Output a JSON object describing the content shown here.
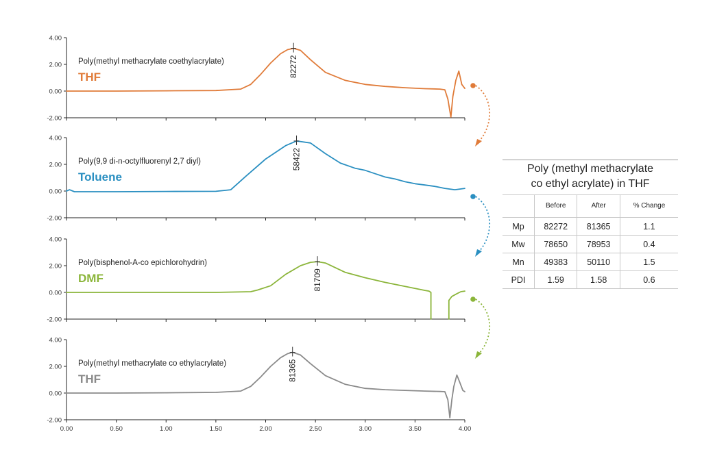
{
  "chart_data": [
    {
      "type": "line",
      "title": "Poly(methyl methacrylate coethylacrylate)",
      "solvent": "THF",
      "color": "#e07b39",
      "peak_label": "82272",
      "peak_x": 2.28,
      "peak_y": 3.2,
      "xlim": [
        0,
        4
      ],
      "ylim": [
        -2,
        4
      ],
      "y_ticks": [
        "4.00",
        "2.00",
        "0.00",
        "-2.00"
      ],
      "x": [
        0,
        0.5,
        1.0,
        1.5,
        1.75,
        1.85,
        1.95,
        2.05,
        2.15,
        2.22,
        2.28,
        2.35,
        2.45,
        2.6,
        2.8,
        3.0,
        3.2,
        3.4,
        3.6,
        3.75,
        3.8,
        3.83,
        3.86,
        3.88,
        3.91,
        3.94,
        3.97,
        4.0
      ],
      "y": [
        0.0,
        0.0,
        0.02,
        0.04,
        0.15,
        0.5,
        1.25,
        2.1,
        2.8,
        3.1,
        3.2,
        3.05,
        2.35,
        1.4,
        0.8,
        0.5,
        0.35,
        0.25,
        0.18,
        0.15,
        0.1,
        -0.6,
        -1.95,
        -0.4,
        0.8,
        1.5,
        0.5,
        0.2
      ]
    },
    {
      "type": "line",
      "title": "Poly(9,9 di-n-octylfluorenyl 2,7 diyl)",
      "solvent": "Toluene",
      "color": "#2a8fc1",
      "peak_label": "58422",
      "peak_x": 2.31,
      "peak_y": 3.75,
      "xlim": [
        0,
        4
      ],
      "ylim": [
        -2,
        4
      ],
      "y_ticks": [
        "4.00",
        "2.00",
        "0.00",
        "-2.00"
      ],
      "x": [
        0,
        0.03,
        0.08,
        0.5,
        1.0,
        1.5,
        1.65,
        1.8,
        2.0,
        2.2,
        2.31,
        2.45,
        2.6,
        2.75,
        2.9,
        3.0,
        3.1,
        3.2,
        3.3,
        3.4,
        3.5,
        3.6,
        3.7,
        3.8,
        3.9,
        4.0
      ],
      "y": [
        0.0,
        0.1,
        -0.05,
        -0.05,
        -0.03,
        -0.02,
        0.1,
        1.1,
        2.4,
        3.4,
        3.75,
        3.6,
        2.8,
        2.1,
        1.7,
        1.55,
        1.3,
        1.05,
        0.9,
        0.7,
        0.55,
        0.45,
        0.35,
        0.2,
        0.1,
        0.2
      ]
    },
    {
      "type": "line",
      "title": "Poly(bisphenol-A-co epichlorohydrin)",
      "solvent": "DMF",
      "color": "#8bb53a",
      "peak_label": "81709",
      "peak_x": 2.52,
      "peak_y": 2.3,
      "xlim": [
        0,
        4
      ],
      "ylim": [
        -2,
        4
      ],
      "y_ticks": [
        "4.00",
        "2.00",
        "0.00",
        "-2.00"
      ],
      "x": [
        0,
        0.5,
        1.0,
        1.5,
        1.85,
        1.92,
        2.05,
        2.2,
        2.35,
        2.45,
        2.52,
        2.6,
        2.8,
        3.0,
        3.2,
        3.4,
        3.6,
        3.64,
        3.66,
        3.66
      ],
      "y": [
        0.0,
        0.0,
        0.0,
        0.0,
        0.05,
        0.18,
        0.5,
        1.35,
        2.0,
        2.25,
        2.3,
        2.2,
        1.5,
        1.1,
        0.75,
        0.45,
        0.15,
        0.1,
        0.0,
        -2.0
      ],
      "x2": [
        3.84,
        3.84,
        3.87,
        3.92,
        3.96,
        4.0
      ],
      "y2": [
        -2.0,
        -0.6,
        -0.3,
        -0.1,
        0.05,
        0.1
      ]
    },
    {
      "type": "line",
      "title": "Poly(methyl methacrylate co ethylacrylate)",
      "solvent": "THF",
      "color": "#8a8a8a",
      "peak_label": "81365",
      "peak_x": 2.27,
      "peak_y": 3.05,
      "xlim": [
        0,
        4
      ],
      "ylim": [
        -2,
        4
      ],
      "xlabel_ticks": [
        "0.00",
        "0.50",
        "1.00",
        "1.50",
        "2.00",
        "2.50",
        "3.00",
        "3.50",
        "4.00"
      ],
      "y_ticks": [
        "4.00",
        "2.00",
        "0.00",
        "-2.00"
      ],
      "x": [
        0,
        0.5,
        1.0,
        1.5,
        1.75,
        1.85,
        1.95,
        2.05,
        2.15,
        2.22,
        2.27,
        2.35,
        2.45,
        2.6,
        2.8,
        3.0,
        3.2,
        3.4,
        3.6,
        3.75,
        3.8,
        3.83,
        3.85,
        3.87,
        3.89,
        3.92,
        3.95,
        3.98,
        4.0
      ],
      "y": [
        0.0,
        0.0,
        0.02,
        0.05,
        0.15,
        0.5,
        1.2,
        2.0,
        2.65,
        2.95,
        3.05,
        2.85,
        2.2,
        1.3,
        0.65,
        0.35,
        0.25,
        0.2,
        0.15,
        0.12,
        0.1,
        -0.5,
        -1.85,
        -0.5,
        0.5,
        1.35,
        0.8,
        0.2,
        0.1
      ]
    }
  ],
  "arrows": [
    {
      "color": "#e07b39"
    },
    {
      "color": "#2a8fc1"
    },
    {
      "color": "#8bb53a"
    }
  ],
  "table": {
    "title_line1": "Poly (methyl methacrylate",
    "title_line2": "co ethyl acrylate) in THF",
    "headers": [
      "",
      "Before",
      "After",
      "% Change"
    ],
    "rows": [
      {
        "label": "Mp",
        "before": "82272",
        "after": "81365",
        "change": "1.1"
      },
      {
        "label": "Mw",
        "before": "78650",
        "after": "78953",
        "change": "0.4"
      },
      {
        "label": "Mn",
        "before": "49383",
        "after": "50110",
        "change": "1.5"
      },
      {
        "label": "PDI",
        "before": "1.59",
        "after": "1.58",
        "change": "0.6"
      }
    ]
  }
}
